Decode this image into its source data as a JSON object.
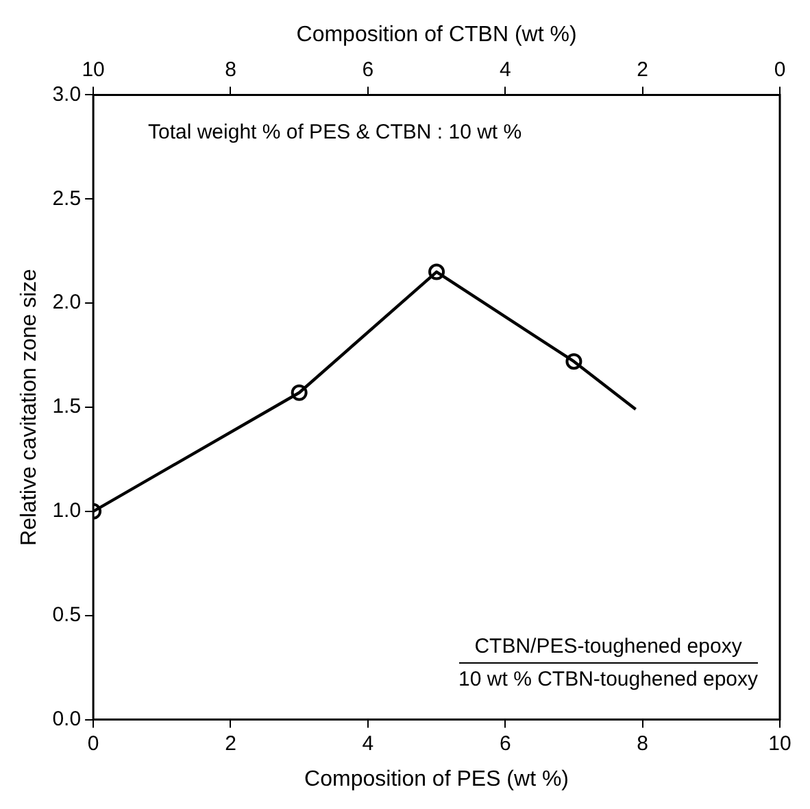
{
  "chart_data": {
    "type": "line",
    "xlabel": "Composition of PES (wt %)",
    "ylabel": "Relative cavitation zone size",
    "x2label": "Composition of CTBN (wt %)",
    "xlim": [
      0,
      10
    ],
    "xticks": [
      0,
      2,
      4,
      6,
      8,
      10
    ],
    "x2lim": [
      10,
      0
    ],
    "x2ticks": [
      10,
      8,
      6,
      4,
      2,
      0
    ],
    "ylim": [
      0,
      3
    ],
    "yticks": [
      {
        "value": 0,
        "label": "0.0"
      },
      0.5,
      {
        "value": 1,
        "label": "1.0"
      },
      1.5,
      {
        "value": 2,
        "label": "2.0"
      },
      2.5,
      {
        "value": 3,
        "label": "3.0"
      }
    ],
    "grid": false,
    "legend": false,
    "series": [
      {
        "color": "#000000",
        "marker": "none",
        "x": [
          0,
          3,
          5,
          7,
          7.9
        ],
        "values": [
          1.0,
          1.57,
          2.15,
          1.72,
          1.49
        ]
      },
      {
        "type": "scatter",
        "color": "#000000",
        "marker": "circle",
        "x": [
          0,
          3,
          5,
          7
        ],
        "values": [
          1.0,
          1.57,
          2.15,
          1.72
        ]
      }
    ],
    "annotations": [
      "Total weight % of PES & CTBN : 10 wt %",
      "CTBN/PES-toughened epoxy",
      "10 wt % CTBN-toughened epoxy"
    ]
  }
}
